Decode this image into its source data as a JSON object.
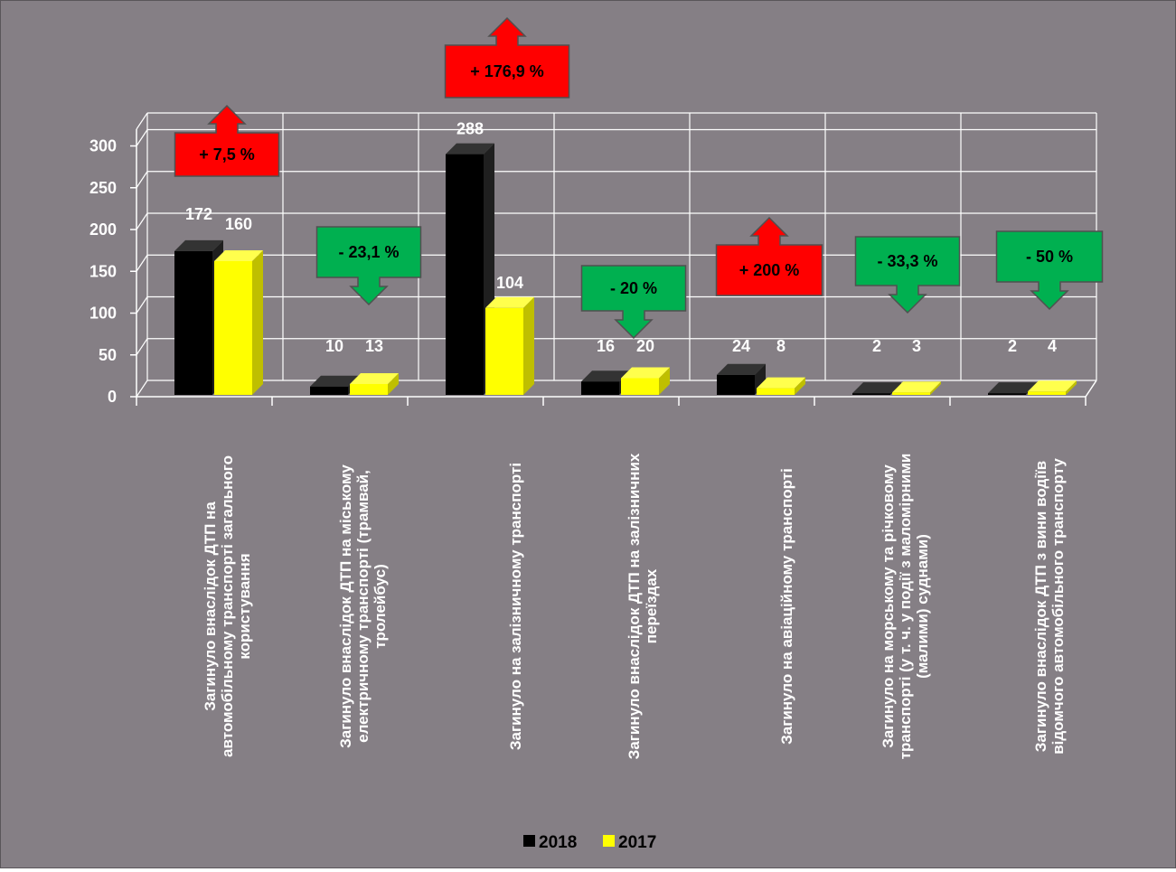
{
  "chart_data": {
    "type": "bar",
    "categories": [
      [
        "Загинуло внаслідок ДТП на",
        "автомобільному транспорті загального",
        "користування"
      ],
      [
        "Загинуло внаслідок ДТП на міському",
        "електричному транспорті (трамвай,",
        "тролейбус)"
      ],
      [
        "Загинуло на залізничному транспорті"
      ],
      [
        "Загинуло внаслідок ДТП на залізничних",
        "переїздах"
      ],
      [
        "Загинуло на авіаційному транспорті"
      ],
      [
        "Загинуло на морському та річковому",
        "транспорті (у т. ч. у події з маломірними",
        "(малими) суднами)"
      ],
      [
        "Загинуло внаслідок ДТП з вини водіїв",
        "відомчого автомобільного транспорту"
      ]
    ],
    "series": [
      {
        "name": "2018",
        "color": "#000000",
        "values": [
          172,
          10,
          288,
          16,
          24,
          2,
          2
        ]
      },
      {
        "name": "2017",
        "color": "#ffff00",
        "values": [
          160,
          13,
          104,
          20,
          8,
          3,
          4
        ]
      }
    ],
    "ylim": [
      0,
      300
    ],
    "yticks": [
      0,
      50,
      100,
      150,
      200,
      250,
      300
    ],
    "grid": true,
    "legend_position": "bottom",
    "annotations": [
      {
        "text": "+ 7,5 %",
        "direction": "up",
        "color": "#ff0000"
      },
      {
        "text": "- 23,1 %",
        "direction": "down",
        "color": "#00b050"
      },
      {
        "text": "+ 176,9 %",
        "direction": "up",
        "color": "#ff0000"
      },
      {
        "text": "- 20 %",
        "direction": "down",
        "color": "#00b050"
      },
      {
        "text": "+ 200 %",
        "direction": "up",
        "color": "#ff0000"
      },
      {
        "text": "- 33,3 %",
        "direction": "down",
        "color": "#00b050"
      },
      {
        "text": "- 50 %",
        "direction": "down",
        "color": "#00b050"
      }
    ]
  }
}
